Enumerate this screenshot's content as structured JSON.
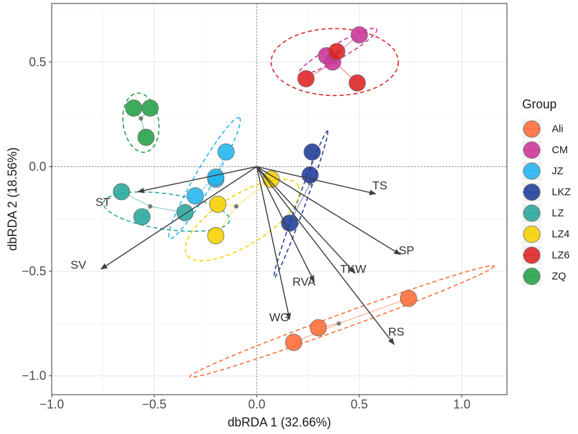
{
  "chart_data": {
    "type": "scatter",
    "xlabel": "dbRDA 1 (32.66%)",
    "ylabel": "dbRDA 2 (18.56%)",
    "xlim": [
      -1.0,
      1.22
    ],
    "ylim": [
      -1.09,
      0.78
    ],
    "xticks": [
      -1.0,
      -0.5,
      0.0,
      0.5,
      1.0
    ],
    "yticks": [
      -1.0,
      -0.5,
      0.0,
      0.5
    ],
    "xtick_labels": [
      "−1.0",
      "−0.5",
      "0.0",
      "0.5",
      "1.0"
    ],
    "ytick_labels": [
      "−1.0",
      "−0.5",
      "0.0",
      "0.5"
    ],
    "grid": true,
    "legend_title": "Group",
    "legend_position": "right",
    "groups": [
      {
        "name": "Ali",
        "color": "#FF6B35",
        "centroid": [
          0.4,
          -0.75
        ],
        "points": [
          [
            0.74,
            -0.63
          ],
          [
            0.3,
            -0.77
          ],
          [
            0.18,
            -0.84
          ]
        ],
        "ellipse": {
          "center": [
            0.415,
            -0.74
          ],
          "rx": 0.79,
          "ry": 0.035,
          "angle": 20
        }
      },
      {
        "name": "CM",
        "color": "#CC3399",
        "centroid": [
          0.4,
          0.55
        ],
        "points": [
          [
            0.5,
            0.63
          ],
          [
            0.34,
            0.53
          ],
          [
            0.37,
            0.5
          ]
        ],
        "ellipse": {
          "center": [
            0.395,
            0.55
          ],
          "rx": 0.22,
          "ry": 0.035,
          "angle": 30
        }
      },
      {
        "name": "JZ",
        "color": "#22B5EE",
        "centroid": [
          -0.2,
          -0.05
        ],
        "points": [
          [
            -0.15,
            0.07
          ],
          [
            -0.2,
            -0.06
          ],
          [
            -0.3,
            -0.14
          ],
          [
            -0.2,
            -0.05
          ]
        ],
        "ellipse": {
          "center": [
            -0.255,
            -0.055
          ],
          "rx": 0.34,
          "ry": 0.045,
          "angle": 60
        }
      },
      {
        "name": "LKZ",
        "color": "#1F3B99",
        "centroid": [
          0.26,
          -0.08
        ],
        "points": [
          [
            0.27,
            0.07
          ],
          [
            0.26,
            -0.04
          ],
          [
            0.16,
            -0.27
          ]
        ],
        "ellipse": {
          "center": [
            0.215,
            -0.18
          ],
          "rx": 0.38,
          "ry": 0.02,
          "angle": 70
        }
      },
      {
        "name": "LZ",
        "color": "#26A69A",
        "centroid": [
          -0.52,
          -0.19
        ],
        "points": [
          [
            -0.66,
            -0.12
          ],
          [
            -0.56,
            -0.24
          ],
          [
            -0.35,
            -0.22
          ]
        ],
        "ellipse": {
          "center": [
            -0.44,
            -0.215
          ],
          "rx": 0.31,
          "ry": 0.085,
          "angle": -8
        }
      },
      {
        "name": "LZ4",
        "color": "#F5D000",
        "centroid": [
          -0.1,
          -0.19
        ],
        "points": [
          [
            0.07,
            -0.06
          ],
          [
            -0.19,
            -0.18
          ],
          [
            -0.2,
            -0.33
          ]
        ],
        "ellipse": {
          "center": [
            -0.07,
            -0.255
          ],
          "rx": 0.32,
          "ry": 0.12,
          "angle": 32
        }
      },
      {
        "name": "LZ6",
        "color": "#DD2222",
        "centroid": [
          0.38,
          0.5
        ],
        "points": [
          [
            0.39,
            0.55
          ],
          [
            0.24,
            0.42
          ],
          [
            0.49,
            0.4
          ]
        ],
        "ellipse": {
          "center": [
            0.38,
            0.5
          ],
          "rx": 0.31,
          "ry": 0.16,
          "angle": 0
        }
      },
      {
        "name": "ZQ",
        "color": "#22A045",
        "centroid": [
          -0.565,
          0.23
        ],
        "points": [
          [
            -0.6,
            0.28
          ],
          [
            -0.52,
            0.28
          ],
          [
            -0.54,
            0.14
          ]
        ],
        "ellipse": {
          "center": [
            -0.565,
            0.21
          ],
          "rx": 0.145,
          "ry": 0.085,
          "angle": -82
        }
      }
    ],
    "env_vectors": [
      {
        "name": "TS",
        "x": 0.58,
        "y": -0.13,
        "label_x": 0.6,
        "label_y": -0.09
      },
      {
        "name": "SP",
        "x": 0.7,
        "y": -0.42,
        "label_x": 0.73,
        "label_y": -0.4
      },
      {
        "name": "TKW",
        "x": 0.48,
        "y": -0.51,
        "label_x": 0.47,
        "label_y": -0.49
      },
      {
        "name": "RVA",
        "x": 0.28,
        "y": -0.55,
        "label_x": 0.23,
        "label_y": -0.55
      },
      {
        "name": "RS",
        "x": 0.67,
        "y": -0.85,
        "label_x": 0.68,
        "label_y": -0.79
      },
      {
        "name": "WG",
        "x": 0.16,
        "y": -0.73,
        "label_x": 0.11,
        "label_y": -0.72
      },
      {
        "name": "ST",
        "x": -0.58,
        "y": -0.12,
        "label_x": -0.75,
        "label_y": -0.17
      },
      {
        "name": "SV",
        "x": -0.76,
        "y": -0.49,
        "label_x": -0.87,
        "label_y": -0.47
      }
    ]
  }
}
